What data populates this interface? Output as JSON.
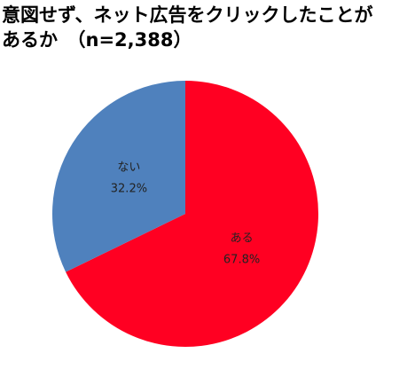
{
  "chart_data": {
    "type": "pie",
    "title": [
      "意図せず、ネット広告をクリックしたことが",
      "あるか　（n=2,388）"
    ],
    "categories": [
      "ある",
      "ない"
    ],
    "values": [
      67.8,
      32.2
    ],
    "value_labels": [
      "67.8%",
      "32.2%"
    ],
    "colors": [
      "#ff0022",
      "#4f81bd"
    ]
  }
}
